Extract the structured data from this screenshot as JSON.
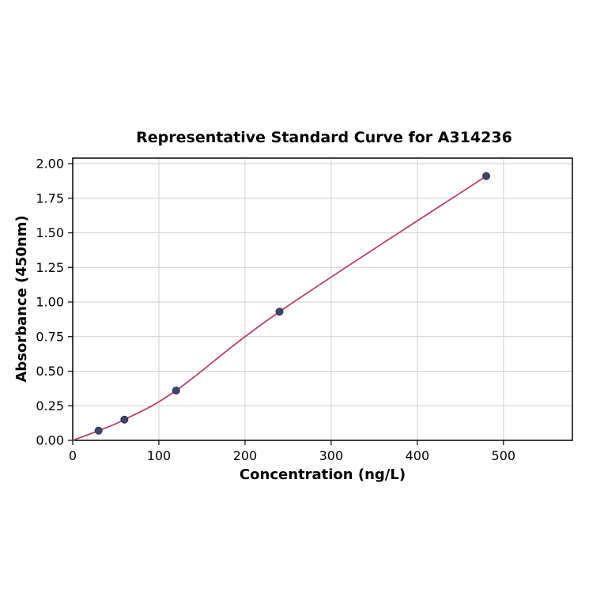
{
  "chart_data": {
    "type": "scatter",
    "title": "Representative Standard Curve for A314236",
    "xlabel": "Concentration (ng/L)",
    "ylabel": "Absorbance (450nm)",
    "x": [
      30,
      60,
      120,
      240,
      480
    ],
    "y": [
      0.07,
      0.15,
      0.36,
      0.93,
      1.91
    ],
    "curve_start": [
      0,
      0
    ],
    "xlim": [
      0,
      580
    ],
    "ylim": [
      0,
      2.04
    ],
    "xtick_values": [
      0,
      100,
      200,
      300,
      400,
      500
    ],
    "xtick_labels": [
      "0",
      "100",
      "200",
      "300",
      "400",
      "500"
    ],
    "ytick_values": [
      0,
      0.25,
      0.5,
      0.75,
      1.0,
      1.25,
      1.5,
      1.75,
      2.0
    ],
    "ytick_labels": [
      "0.00",
      "0.25",
      "0.50",
      "0.75",
      "1.00",
      "1.25",
      "1.50",
      "1.75",
      "2.00"
    ],
    "grid": true,
    "legend": "none",
    "grid_color": "#cfcfcf",
    "axis_color": "#000000",
    "curve_color": "#b5456b",
    "point_color": "#3b4668",
    "point_edge_color": "#2a3350",
    "background_color": "#ffffff"
  }
}
